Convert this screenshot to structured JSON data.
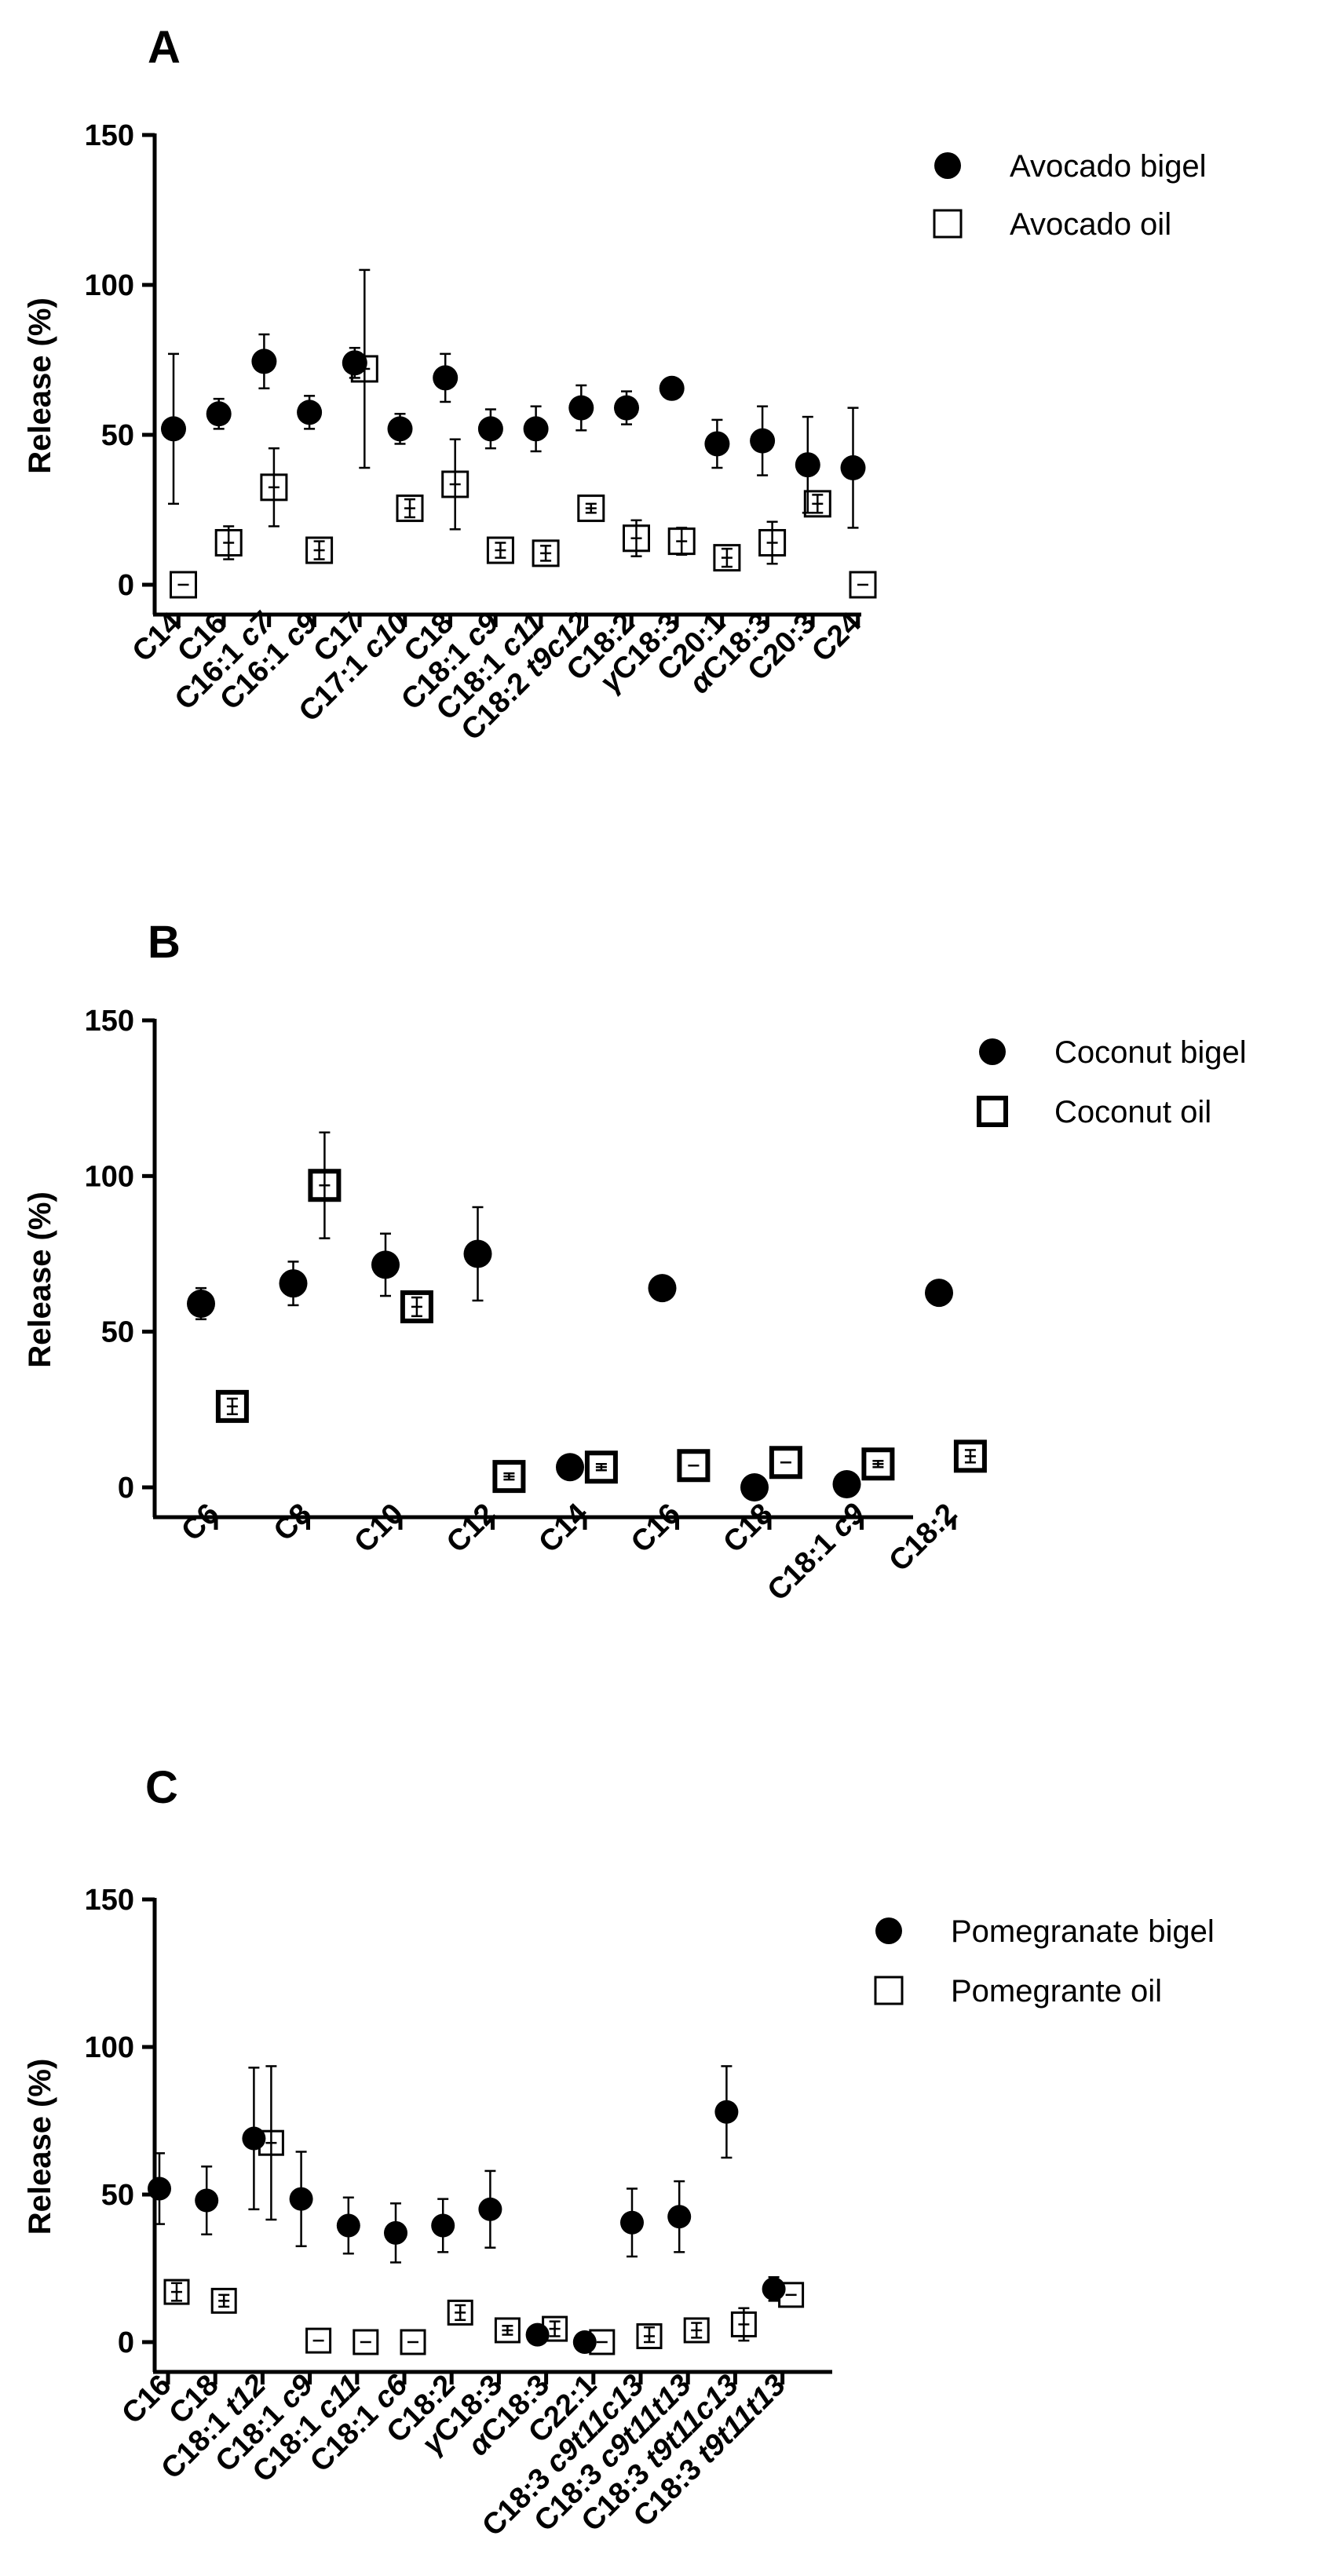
{
  "chart_data": [
    {
      "type": "scatter",
      "panel": "A",
      "ylabel": "Release (%)",
      "xlabel": "",
      "ylim": [
        0,
        150
      ],
      "yticks": [
        0,
        50,
        100,
        150
      ],
      "categories": [
        "C14",
        "C16",
        "C16:1 c7",
        "C16:1 c9",
        "C17",
        "C17:1 c10",
        "C18",
        "C18:1 c9",
        "C18:1 c11",
        "C18:2 t9c12",
        "C18:2",
        "γC18:3",
        "C20:1",
        "αC18:3",
        "C20:3",
        "C24"
      ],
      "category_labels": [
        [
          {
            "t": "C14"
          }
        ],
        [
          {
            "t": "C16"
          }
        ],
        [
          {
            "t": "C16:1 "
          },
          {
            "t": "c7",
            "i": true
          }
        ],
        [
          {
            "t": "C16:1 "
          },
          {
            "t": "c9",
            "i": true
          }
        ],
        [
          {
            "t": "C17"
          }
        ],
        [
          {
            "t": "C17:1 "
          },
          {
            "t": "c10",
            "i": true
          }
        ],
        [
          {
            "t": "C18"
          }
        ],
        [
          {
            "t": "C18:1 "
          },
          {
            "t": "c9",
            "i": true
          }
        ],
        [
          {
            "t": "C18:1 "
          },
          {
            "t": "c11",
            "i": true
          }
        ],
        [
          {
            "t": "C18:2 "
          },
          {
            "t": "t9c12",
            "i": true
          }
        ],
        [
          {
            "t": "C18:2"
          }
        ],
        [
          {
            "t": "γ",
            "i": true
          },
          {
            "t": "C18:3"
          }
        ],
        [
          {
            "t": "C20:1"
          }
        ],
        [
          {
            "t": "α",
            "i": true
          },
          {
            "t": "C18:3"
          }
        ],
        [
          {
            "t": "C20:3"
          }
        ],
        [
          {
            "t": "C24"
          }
        ]
      ],
      "series": [
        {
          "name": "Avocado bigel",
          "marker": "circle",
          "values": [
            52,
            57,
            74.5,
            57.5,
            74,
            52,
            69,
            52,
            52,
            59,
            59,
            65.5,
            47,
            48,
            40,
            39
          ],
          "errors": [
            25,
            5,
            9,
            5.5,
            5,
            5,
            8,
            6.5,
            7.5,
            7.5,
            5.5,
            0,
            8,
            11.5,
            16,
            20
          ]
        },
        {
          "name": "Avocado oil",
          "marker": "square",
          "values": [
            0,
            14,
            32.5,
            11.5,
            72,
            25.5,
            33.5,
            11.5,
            10.5,
            25.5,
            15.5,
            14.5,
            9,
            14,
            27,
            0
          ],
          "errors": [
            0,
            5.5,
            13,
            3,
            33,
            3,
            15,
            2.5,
            2.5,
            1.5,
            6,
            4.5,
            3,
            7,
            3,
            0
          ]
        }
      ],
      "legend_position": "top-right"
    },
    {
      "type": "scatter",
      "panel": "B",
      "ylabel": "Release (%)",
      "xlabel": "",
      "ylim": [
        0,
        150
      ],
      "yticks": [
        0,
        50,
        100,
        150
      ],
      "categories": [
        "C6",
        "C8",
        "C10",
        "C12",
        "C14",
        "C16",
        "C18",
        "C18:1 c9",
        "C18:2"
      ],
      "category_labels": [
        [
          {
            "t": "C6"
          }
        ],
        [
          {
            "t": "C8"
          }
        ],
        [
          {
            "t": "C10"
          }
        ],
        [
          {
            "t": "C12"
          }
        ],
        [
          {
            "t": "C14"
          }
        ],
        [
          {
            "t": "C16"
          }
        ],
        [
          {
            "t": "C18"
          }
        ],
        [
          {
            "t": "C18:1 "
          },
          {
            "t": "c9",
            "i": true
          }
        ],
        [
          {
            "t": "C18:2"
          }
        ]
      ],
      "series": [
        {
          "name": "Coconut bigel",
          "marker": "circle",
          "values": [
            59,
            65.5,
            71.5,
            75,
            6.5,
            64,
            0,
            1,
            62.5
          ],
          "errors": [
            5,
            7,
            10,
            15,
            0,
            0,
            0,
            0,
            0
          ]
        },
        {
          "name": "Coconut oil",
          "marker": "square-bold",
          "values": [
            26,
            97,
            58,
            3.5,
            6.5,
            7,
            8,
            7.5,
            10
          ],
          "errors": [
            2.5,
            17,
            3,
            1,
            1,
            0,
            0,
            1,
            2
          ]
        }
      ],
      "legend_position": "top-right"
    },
    {
      "type": "scatter",
      "panel": "C",
      "ylabel": "Release (%)",
      "xlabel": "",
      "ylim": [
        0,
        150
      ],
      "yticks": [
        0,
        50,
        100,
        150
      ],
      "categories": [
        "C16",
        "C18",
        "C18:1 t12",
        "C18:1 c9",
        "C18:1 c11",
        "C18:1 c6",
        "C18:2",
        "γC18:3",
        "αC18:3",
        "C22:1",
        "C18:3 c9t11c13",
        "C18:3 c9t11t13",
        "C18:3 t9t11c13",
        "C18:3 t9t11t13"
      ],
      "category_labels": [
        [
          {
            "t": "C16"
          }
        ],
        [
          {
            "t": "C18"
          }
        ],
        [
          {
            "t": "C18:1 "
          },
          {
            "t": "t12",
            "i": true
          }
        ],
        [
          {
            "t": "C18:1 "
          },
          {
            "t": "c9",
            "i": true
          }
        ],
        [
          {
            "t": "C18:1 "
          },
          {
            "t": "c11",
            "i": true
          }
        ],
        [
          {
            "t": "C18:1 "
          },
          {
            "t": "c6",
            "i": true
          }
        ],
        [
          {
            "t": "C18:2"
          }
        ],
        [
          {
            "t": "γ",
            "i": true
          },
          {
            "t": "C18:3"
          }
        ],
        [
          {
            "t": "α",
            "i": true
          },
          {
            "t": "C18:3"
          }
        ],
        [
          {
            "t": "C22:1"
          }
        ],
        [
          {
            "t": "C18:3 "
          },
          {
            "t": "c9t11c13",
            "i": true
          }
        ],
        [
          {
            "t": "C18:3 "
          },
          {
            "t": "c9t11t13",
            "i": true
          }
        ],
        [
          {
            "t": "C18:3 "
          },
          {
            "t": "t9t11c13",
            "i": true
          }
        ],
        [
          {
            "t": "C18:3 "
          },
          {
            "t": "t9t11t13",
            "i": true
          }
        ]
      ],
      "series": [
        {
          "name": "Pomegranate bigel",
          "marker": "circle",
          "values": [
            52,
            48,
            69,
            48.5,
            39.5,
            37,
            39.5,
            45,
            2.5,
            0,
            40.5,
            42.5,
            78,
            18
          ],
          "errors": [
            12,
            11.5,
            24,
            16,
            9.5,
            10,
            9,
            13,
            0,
            0,
            11.5,
            12,
            15.5,
            4
          ]
        },
        {
          "name": "Pomegrante oil",
          "marker": "square",
          "values": [
            17,
            14,
            67.5,
            0.5,
            0,
            0,
            10,
            4,
            4.5,
            0,
            2,
            4,
            6,
            16
          ],
          "errors": [
            3,
            2,
            26,
            0,
            0,
            0,
            2.5,
            1.5,
            2.5,
            0,
            3,
            2.5,
            5.5,
            0
          ]
        }
      ],
      "legend_position": "top-right"
    }
  ]
}
